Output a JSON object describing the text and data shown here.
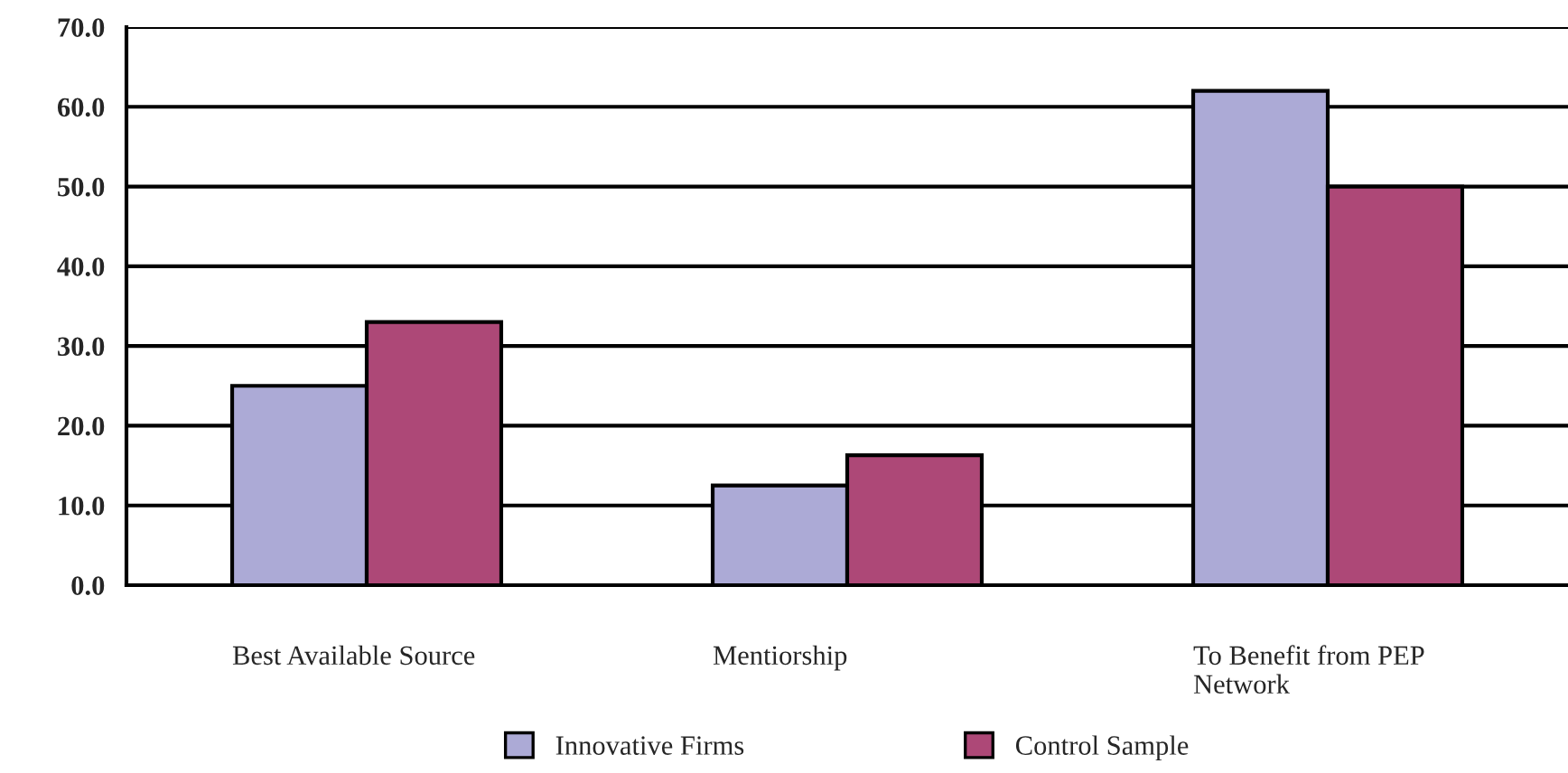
{
  "chart_data": {
    "type": "bar",
    "categories": [
      "Best Available Source",
      "Mentiorship",
      "To Benefit from PEP\nNetwork"
    ],
    "series": [
      {
        "name": "Innovative Firms",
        "color": "#acaad6",
        "values": [
          25,
          12.5,
          62
        ]
      },
      {
        "name": "Control Sample",
        "color": "#ad4877",
        "values": [
          33,
          16.3,
          50
        ]
      }
    ],
    "ylim": [
      0,
      70
    ],
    "yticks": [
      {
        "value": 0,
        "label": "0.0"
      },
      {
        "value": 10,
        "label": "10.0"
      },
      {
        "value": 20,
        "label": "20.0"
      },
      {
        "value": 30,
        "label": "30.0"
      },
      {
        "value": 40,
        "label": "40.0"
      },
      {
        "value": 50,
        "label": "50.0"
      },
      {
        "value": 60,
        "label": "60.0"
      },
      {
        "value": 70,
        "label": "70.0"
      }
    ],
    "grid": "y",
    "legend": "bottom"
  }
}
